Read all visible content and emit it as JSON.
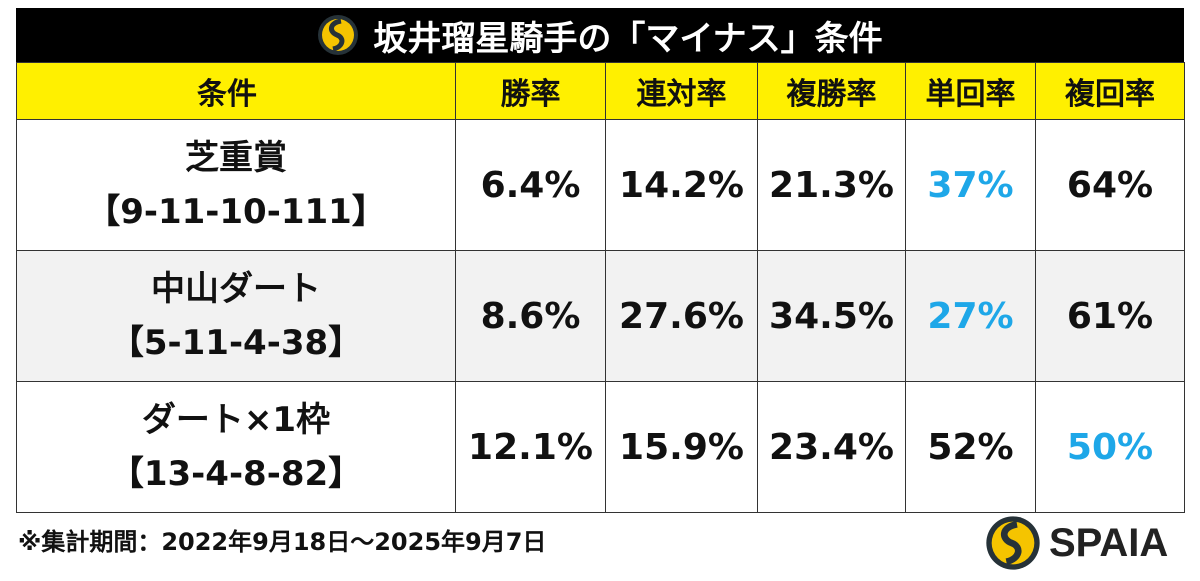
{
  "title": "坂井瑠星騎手の「マイナス」条件",
  "columns": [
    "条件",
    "勝率",
    "連対率",
    "複勝率",
    "単回率",
    "複回率"
  ],
  "rows": [
    {
      "name": "芝重賞",
      "record": "【9-11-10-111】",
      "values": [
        "6.4%",
        "14.2%",
        "21.3%",
        "37%",
        "64%"
      ],
      "highlight": [
        false,
        false,
        false,
        true,
        false
      ]
    },
    {
      "name": "中山ダート",
      "record": "【5-11-4-38】",
      "values": [
        "8.6%",
        "27.6%",
        "34.5%",
        "27%",
        "61%"
      ],
      "highlight": [
        false,
        false,
        false,
        true,
        false
      ]
    },
    {
      "name": "ダート×1枠",
      "record": "【13-4-8-82】",
      "values": [
        "12.1%",
        "15.9%",
        "23.4%",
        "52%",
        "50%"
      ],
      "highlight": [
        false,
        false,
        false,
        false,
        true
      ]
    }
  ],
  "footnote": "※集計期間：2022年9月18日～2025年9月7日",
  "brand": "SPAIA",
  "colors": {
    "header_bg": "#fff000",
    "highlight": "#1ea7e8",
    "title_bg": "#000000",
    "logo": "#f5c400"
  }
}
